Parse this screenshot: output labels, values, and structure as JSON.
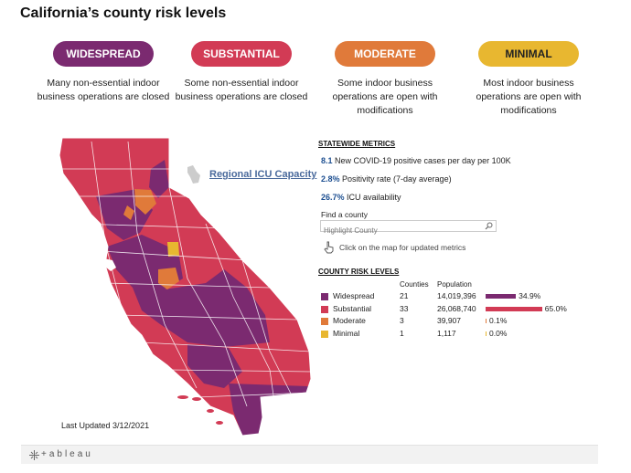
{
  "title": "California’s county risk levels",
  "colors": {
    "widespread": "#7b2a70",
    "substantial": "#d23b55",
    "moderate": "#e07a3a",
    "minimal": "#e8b730"
  },
  "tiers": [
    {
      "label": "WIDESPREAD",
      "description": "Many non-essential indoor business operations are closed"
    },
    {
      "label": "SUBSTANTIAL",
      "description": "Some non-essential indoor business operations are closed"
    },
    {
      "label": "MODERATE",
      "description": "Some indoor business operations are open with modifications"
    },
    {
      "label": "MINIMAL",
      "description": "Most indoor business operations are open with modifications"
    }
  ],
  "map": {
    "last_updated": "Last Updated 3/12/2021",
    "icu_link": "Regional ICU Capacity",
    "hand_icon": "pointing-hand-icon"
  },
  "statewide": {
    "heading": "STATEWIDE METRICS",
    "metrics": [
      {
        "value": "8.1",
        "label": " New COVID-19 positive cases per day per 100K"
      },
      {
        "value": "2.8%",
        "label": " Positivity rate (7-day average)"
      },
      {
        "value": "26.7%",
        "label": " ICU availability"
      }
    ],
    "find_label": "Find a county",
    "search_placeholder": "Highlight County",
    "click_hint": "Click on the map for updated metrics"
  },
  "county_levels": {
    "heading": "COUNTY RISK LEVELS",
    "col_counties": "Counties",
    "col_population": "Population",
    "rows": [
      {
        "label": "Widespread",
        "counties": "21",
        "population": "14,019,396",
        "pct_label": "34.9%",
        "pct": 34.9,
        "color": "#7b2a70"
      },
      {
        "label": "Substantial",
        "counties": "33",
        "population": "26,068,740",
        "pct_label": "65.0%",
        "pct": 65.0,
        "color": "#d23b55"
      },
      {
        "label": "Moderate",
        "counties": "3",
        "population": "39,907",
        "pct_label": "0.1%",
        "pct": 0.1,
        "color": "#e07a3a"
      },
      {
        "label": "Minimal",
        "counties": "1",
        "population": "1,117",
        "pct_label": "0.0%",
        "pct": 0.0,
        "color": "#e8b730"
      }
    ]
  },
  "footer": {
    "brand": "+ableau"
  }
}
